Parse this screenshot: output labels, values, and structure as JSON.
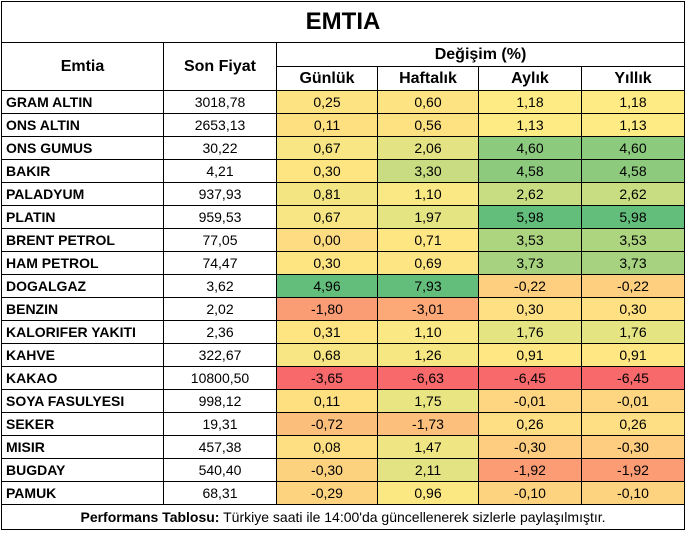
{
  "title": "EMTIA",
  "headers": {
    "emtia": "Emtia",
    "son_fiyat": "Son Fiyat",
    "degisim": "Değişim (%)",
    "gunluk": "Günlük",
    "haftalik": "Haftalık",
    "aylik": "Aylık",
    "yillik": "Yıllık"
  },
  "rows": [
    {
      "name": "GRAM ALTIN",
      "price": "3018,78",
      "vals": [
        "0,25",
        "0,60",
        "1,18",
        "1,18"
      ],
      "colors": [
        "#FEE382",
        "#FEE382",
        "#FFEB84",
        "#FFEB84"
      ]
    },
    {
      "name": "ONS ALTIN",
      "price": "2653,13",
      "vals": [
        "0,11",
        "0,56",
        "1,13",
        "1,13"
      ],
      "colors": [
        "#FEE081",
        "#FEE282",
        "#FFEB84",
        "#FFEB84"
      ]
    },
    {
      "name": "ONS GUMUS",
      "price": "30,22",
      "vals": [
        "0,67",
        "2,06",
        "4,60",
        "4,60"
      ],
      "colors": [
        "#F7E683",
        "#E4E383",
        "#8CCA7E",
        "#8CCA7E"
      ]
    },
    {
      "name": "BAKIR",
      "price": "4,21",
      "vals": [
        "0,30",
        "3,30",
        "4,58",
        "4,58"
      ],
      "colors": [
        "#FEE582",
        "#CADC81",
        "#8DCA7E",
        "#8DCA7E"
      ]
    },
    {
      "name": "PALADYUM",
      "price": "937,93",
      "vals": [
        "0,81",
        "1,10",
        "2,62",
        "2,62"
      ],
      "colors": [
        "#F4E583",
        "#F9E883",
        "#C8DC81",
        "#C8DC81"
      ]
    },
    {
      "name": "PLATIN",
      "price": "959,53",
      "vals": [
        "0,67",
        "1,97",
        "5,98",
        "5,98"
      ],
      "colors": [
        "#F7E683",
        "#E5E483",
        "#63BE7B",
        "#63BE7B"
      ]
    },
    {
      "name": "BRENT PETROL",
      "price": "77,05",
      "vals": [
        "0,00",
        "0,71",
        "3,53",
        "3,53"
      ],
      "colors": [
        "#FEDC81",
        "#FEE683",
        "#ADD47F",
        "#ADD47F"
      ]
    },
    {
      "name": "HAM PETROL",
      "price": "74,47",
      "vals": [
        "0,30",
        "0,69",
        "3,73",
        "3,73"
      ],
      "colors": [
        "#FEE582",
        "#FEE583",
        "#A7D27F",
        "#A7D27F"
      ]
    },
    {
      "name": "DOGALGAZ",
      "price": "3,62",
      "vals": [
        "4,96",
        "7,93"
      ],
      "colors": [
        "#63BE7B",
        "#63BE7B",
        "#FECF7F",
        "#FECF7F"
      ],
      "vals2": [
        "-0,22",
        "-0,22"
      ]
    },
    {
      "name": "BENZIN",
      "price": "2,02",
      "vals": [
        "-1,80",
        "-3,01",
        "0,30",
        "0,30"
      ],
      "colors": [
        "#FA9D75",
        "#FCA877",
        "#FFE083",
        "#FFE083"
      ]
    },
    {
      "name": "KALORIFER YAKITI",
      "price": "2,36",
      "vals": [
        "0,31",
        "1,10",
        "1,76",
        "1,76"
      ],
      "colors": [
        "#FEE582",
        "#F9E883",
        "#E5E483",
        "#E5E483"
      ]
    },
    {
      "name": "KAHVE",
      "price": "322,67",
      "vals": [
        "0,68",
        "1,26",
        "0,91",
        "0,91"
      ],
      "colors": [
        "#F7E683",
        "#F6E783",
        "#FFE784",
        "#FFE784"
      ]
    },
    {
      "name": "KAKAO",
      "price": "10800,50",
      "vals": [
        "-3,65",
        "-6,63",
        "-6,45",
        "-6,45"
      ],
      "colors": [
        "#F8696B",
        "#F8696B",
        "#F8696B",
        "#F8696B"
      ]
    },
    {
      "name": "SOYA FASULYESI",
      "price": "998,12",
      "vals": [
        "0,11",
        "1,75",
        "-0,01",
        "-0,01"
      ],
      "colors": [
        "#FEE081",
        "#E9E583",
        "#FED580",
        "#FED580"
      ]
    },
    {
      "name": "SEKER",
      "price": "19,31",
      "vals": [
        "-0,72",
        "-1,73",
        "0,26",
        "0,26"
      ],
      "colors": [
        "#FCBE7B",
        "#FCC07C",
        "#FFDF83",
        "#FFDF83"
      ]
    },
    {
      "name": "MISIR",
      "price": "457,38",
      "vals": [
        "0,08",
        "1,47",
        "-0,30",
        "-0,30"
      ],
      "colors": [
        "#FEDF81",
        "#EFE683",
        "#FECD7F",
        "#FECD7F"
      ]
    },
    {
      "name": "BUGDAY",
      "price": "540,40",
      "vals": [
        "-0,30",
        "2,11",
        "-1,92",
        "-1,92"
      ],
      "colors": [
        "#FDD27F",
        "#E3E383",
        "#FB9C75",
        "#FB9C75"
      ]
    },
    {
      "name": "PAMUK",
      "price": "68,31",
      "vals": [
        "-0,29",
        "0,96",
        "-0,10",
        "-0,10"
      ],
      "colors": [
        "#FDD37F",
        "#FBE883",
        "#FED380",
        "#FED380"
      ]
    }
  ],
  "footer": {
    "bold": "Performans Tablosu:",
    "text": " Türkiye saati ile 14:00'da güncellenerek sizlerle paylaşılmıştır."
  }
}
